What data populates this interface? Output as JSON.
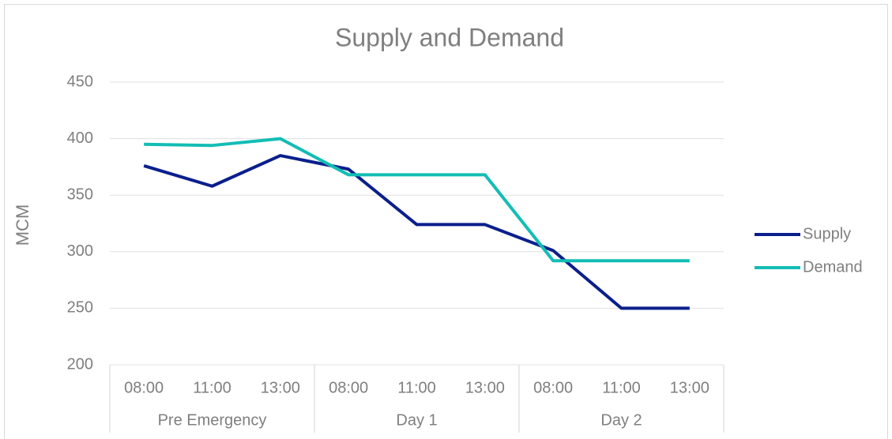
{
  "chart_data": {
    "type": "line",
    "title": "Supply and Demand",
    "y_label": "MCM",
    "groups": [
      {
        "name": "Pre Emergency",
        "categories": [
          "08:00",
          "11:00",
          "13:00"
        ]
      },
      {
        "name": "Day 1",
        "categories": [
          "08:00",
          "11:00",
          "13:00"
        ]
      },
      {
        "name": "Day 2",
        "categories": [
          "08:00",
          "11:00",
          "13:00"
        ]
      }
    ],
    "series": [
      {
        "name": "Supply",
        "color": "#0b1f8c",
        "values": [
          376,
          358,
          385,
          373,
          324,
          324,
          301,
          250,
          250
        ]
      },
      {
        "name": "Demand",
        "color": "#13bdb5",
        "values": [
          395,
          394,
          400,
          368,
          368,
          368,
          292,
          292,
          292
        ]
      }
    ],
    "ylim": [
      200,
      450
    ],
    "yticks": [
      200,
      250,
      300,
      350,
      400,
      450
    ],
    "grid": true,
    "legend": "right"
  }
}
